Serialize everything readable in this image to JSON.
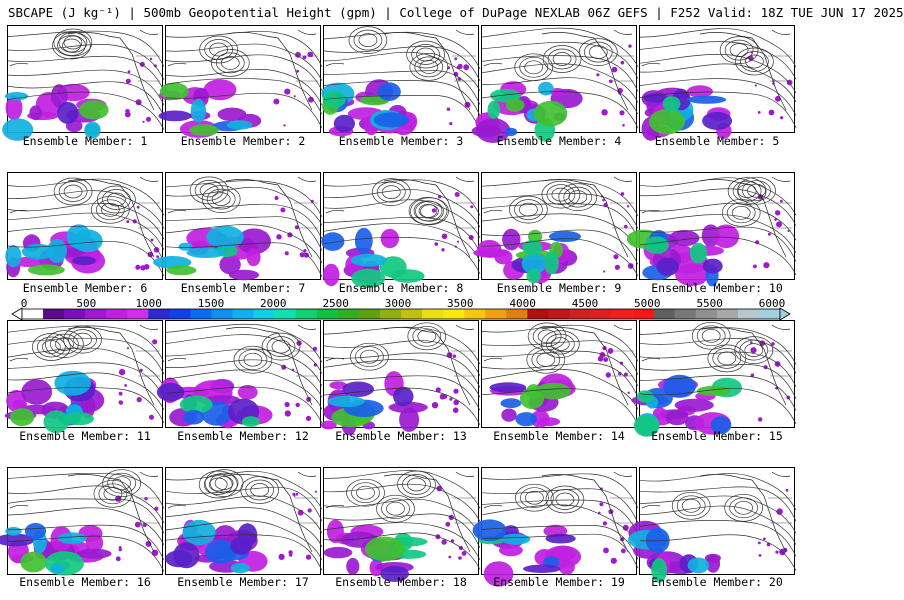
{
  "title": "SBCAPE (J kg⁻¹) | 500mb Geopotential Height (gpm) | College of DuPage NEXLAB 06Z GEFS | F252 Valid: 18Z TUE JUN 17 2025",
  "label_prefix": "Ensemble Member: ",
  "members": [
    "1",
    "2",
    "3",
    "4",
    "5",
    "6",
    "7",
    "8",
    "9",
    "10",
    "11",
    "12",
    "13",
    "14",
    "15",
    "16",
    "17",
    "18",
    "19",
    "20"
  ],
  "colorbar": {
    "ticks": [
      "0",
      "500",
      "1000",
      "1500",
      "2000",
      "2500",
      "3000",
      "3500",
      "4000",
      "4500",
      "5000",
      "5500",
      "6000"
    ],
    "min": 0,
    "max": 6000,
    "colors": [
      "#ffffff",
      "#5a0a8a",
      "#7a10b8",
      "#a018d0",
      "#c020e0",
      "#d030e8",
      "#2a2ad0",
      "#1040e8",
      "#0a6cf0",
      "#1090f0",
      "#10b0f0",
      "#10d0e8",
      "#10e0b0",
      "#10d070",
      "#10c040",
      "#30b020",
      "#60a010",
      "#90b010",
      "#c0c010",
      "#e8e010",
      "#f8e810",
      "#f8c810",
      "#f0a010",
      "#e08010",
      "#b01010",
      "#c01818",
      "#d02020",
      "#e02020",
      "#f02020",
      "#f81818",
      "#606060",
      "#787878",
      "#909090",
      "#a8a8a8",
      "#b8c8d0",
      "#a0d0e0"
    ]
  }
}
